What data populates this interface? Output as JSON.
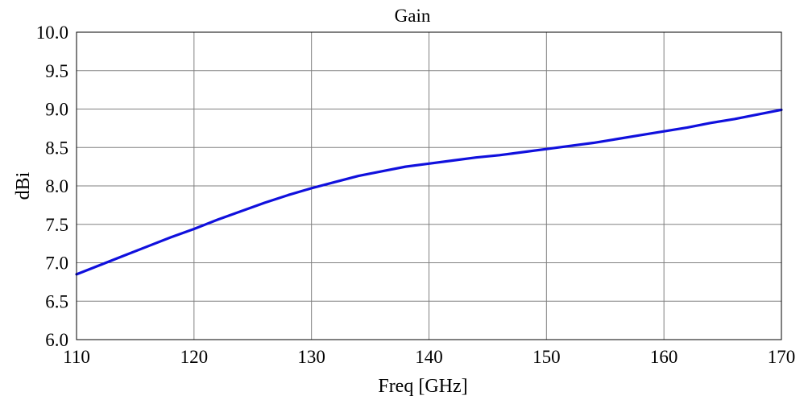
{
  "chart_data": {
    "type": "line",
    "title": "Gain",
    "xlabel": "Freq [GHz]",
    "ylabel": "dBi",
    "xlim": [
      110,
      170
    ],
    "ylim": [
      6.0,
      10.0
    ],
    "x_ticks": [
      110,
      120,
      130,
      140,
      150,
      160,
      170
    ],
    "y_ticks": [
      6.0,
      6.5,
      7.0,
      7.5,
      8.0,
      8.5,
      9.0,
      9.5,
      10.0
    ],
    "x_tick_labels": [
      "110",
      "120",
      "130",
      "140",
      "150",
      "160",
      "170"
    ],
    "y_tick_labels": [
      "6.0",
      "6.5",
      "7.0",
      "7.5",
      "8.0",
      "8.5",
      "9.0",
      "9.5",
      "10.0"
    ],
    "grid": true,
    "legend": "none",
    "series": [
      {
        "color": "#1010dd",
        "x": [
          110,
          112,
          114,
          116,
          118,
          120,
          122,
          124,
          126,
          128,
          130,
          132,
          134,
          136,
          138,
          140,
          142,
          144,
          146,
          148,
          150,
          152,
          154,
          156,
          158,
          160,
          162,
          164,
          166,
          168,
          170
        ],
        "y": [
          6.85,
          6.97,
          7.09,
          7.21,
          7.33,
          7.44,
          7.56,
          7.67,
          7.78,
          7.88,
          7.97,
          8.05,
          8.13,
          8.19,
          8.25,
          8.29,
          8.33,
          8.37,
          8.4,
          8.44,
          8.48,
          8.52,
          8.56,
          8.61,
          8.66,
          8.71,
          8.76,
          8.82,
          8.87,
          8.93,
          8.99
        ]
      }
    ]
  }
}
